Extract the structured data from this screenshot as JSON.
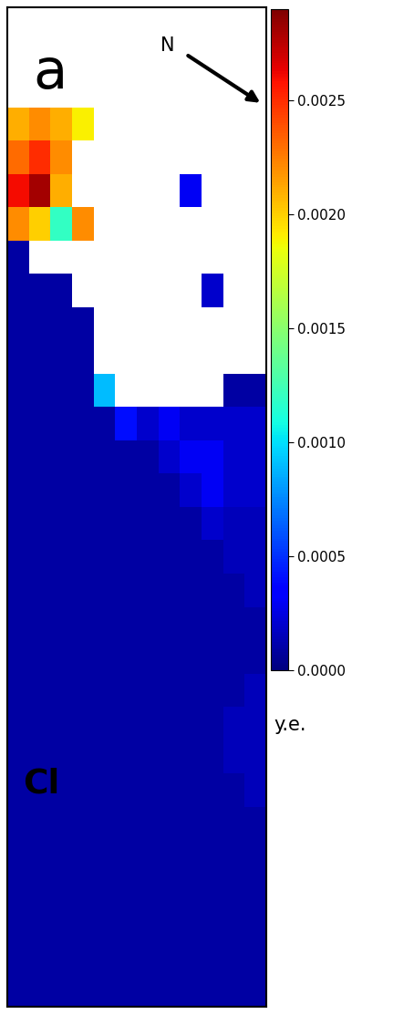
{
  "chart_data": {
    "type": "heatmap",
    "tick_labels": false,
    "annotations": [
      "a",
      "N",
      "Cl"
    ],
    "colorbar": {
      "label": "y.e.",
      "range": [
        0,
        0.0029
      ],
      "ticks": [
        {
          "value": 0,
          "label": "0.0000"
        },
        {
          "value": 0.0005,
          "label": "0.0005"
        },
        {
          "value": 0.001,
          "label": "0.0010"
        },
        {
          "value": 0.0015,
          "label": "0.0015"
        },
        {
          "value": 0.002,
          "label": "0.0020"
        },
        {
          "value": 0.0025,
          "label": "0.0025"
        }
      ]
    },
    "cells": [
      [
        null,
        null,
        null,
        null,
        null,
        null,
        null,
        null,
        null,
        null,
        null,
        null
      ],
      [
        null,
        null,
        null,
        null,
        null,
        null,
        null,
        null,
        null,
        null,
        null,
        null
      ],
      [
        null,
        null,
        null,
        null,
        null,
        null,
        null,
        null,
        null,
        null,
        null,
        null
      ],
      [
        0.0021,
        0.0022,
        0.0021,
        0.0019,
        null,
        null,
        null,
        null,
        null,
        null,
        null,
        null
      ],
      [
        0.0023,
        0.0025,
        0.0022,
        null,
        null,
        null,
        null,
        null,
        null,
        null,
        null,
        null
      ],
      [
        0.0026,
        0.0028,
        0.0021,
        null,
        null,
        null,
        null,
        null,
        0.0003,
        null,
        null,
        null
      ],
      [
        0.0022,
        0.002,
        0.0012,
        0.0022,
        null,
        null,
        null,
        null,
        null,
        null,
        null,
        null
      ],
      [
        0.0001,
        null,
        null,
        null,
        null,
        null,
        null,
        null,
        null,
        null,
        null,
        null
      ],
      [
        0.0001,
        0.0001,
        0.0001,
        null,
        null,
        null,
        null,
        null,
        null,
        0.0002,
        null,
        null
      ],
      [
        0.0001,
        0.0001,
        0.0001,
        0.0001,
        null,
        null,
        null,
        null,
        null,
        null,
        null,
        null
      ],
      [
        0.0001,
        0.0001,
        0.0001,
        0.0001,
        null,
        null,
        null,
        null,
        null,
        null,
        null,
        null
      ],
      [
        0.0001,
        0.0001,
        0.0001,
        0.0001,
        0.0009,
        null,
        null,
        null,
        null,
        null,
        0.0001,
        0.0001
      ],
      [
        0.0001,
        0.0001,
        0.0001,
        0.0001,
        0.0001,
        0.0004,
        0.0002,
        0.0003,
        0.0002,
        0.0002,
        0.0002,
        0.0002
      ],
      [
        0.0001,
        0.0001,
        0.0001,
        0.0001,
        0.0001,
        0.0001,
        0.0001,
        0.0002,
        0.0003,
        0.0003,
        0.0002,
        0.0002
      ],
      [
        0.0001,
        0.0001,
        0.0001,
        0.0001,
        0.0001,
        0.0001,
        0.0001,
        0.0001,
        0.0002,
        0.0003,
        0.0002,
        0.0002
      ],
      [
        0.0001,
        0.0001,
        0.0001,
        0.0001,
        0.0001,
        0.0001,
        0.0001,
        0.0001,
        0.0001,
        0.0002,
        0.00015,
        0.00015
      ],
      [
        0.0001,
        0.0001,
        0.0001,
        0.0001,
        0.0001,
        0.0001,
        0.0001,
        0.0001,
        0.0001,
        0.0001,
        0.00015,
        0.00015
      ],
      [
        0.0001,
        0.0001,
        0.0001,
        0.0001,
        0.0001,
        0.0001,
        0.0001,
        0.0001,
        0.0001,
        0.0001,
        0.0001,
        0.00015
      ],
      [
        0.0001,
        0.0001,
        0.0001,
        0.0001,
        0.0001,
        0.0001,
        0.0001,
        0.0001,
        0.0001,
        0.0001,
        0.0001,
        0.0001
      ],
      [
        0.0001,
        0.0001,
        0.0001,
        0.0001,
        0.0001,
        0.0001,
        0.0001,
        0.0001,
        0.0001,
        0.0001,
        0.0001,
        0.0001
      ],
      [
        0.0001,
        0.0001,
        0.0001,
        0.0001,
        0.0001,
        0.0001,
        0.0001,
        0.0001,
        0.0001,
        0.0001,
        0.0001,
        0.00015
      ],
      [
        0.0001,
        0.0001,
        0.0001,
        0.0001,
        0.0001,
        0.0001,
        0.0001,
        0.0001,
        0.0001,
        0.0001,
        0.00015,
        0.00015
      ],
      [
        0.0001,
        0.0001,
        0.0001,
        0.0001,
        0.0001,
        0.0001,
        0.0001,
        0.0001,
        0.0001,
        0.0001,
        0.00015,
        0.00015
      ],
      [
        0.0001,
        0.0001,
        0.0001,
        0.0001,
        0.0001,
        0.0001,
        0.0001,
        0.0001,
        0.0001,
        0.0001,
        0.0001,
        0.00015
      ],
      [
        0.0001,
        0.0001,
        0.0001,
        0.0001,
        0.0001,
        0.0001,
        0.0001,
        0.0001,
        0.0001,
        0.0001,
        0.0001,
        0.0001
      ],
      [
        0.0001,
        0.0001,
        0.0001,
        0.0001,
        0.0001,
        0.0001,
        0.0001,
        0.0001,
        0.0001,
        0.0001,
        0.0001,
        0.0001
      ],
      [
        0.0001,
        0.0001,
        0.0001,
        0.0001,
        0.0001,
        0.0001,
        0.0001,
        0.0001,
        0.0001,
        0.0001,
        0.0001,
        0.0001
      ],
      [
        0.0001,
        0.0001,
        0.0001,
        0.0001,
        0.0001,
        0.0001,
        0.0001,
        0.0001,
        0.0001,
        0.0001,
        0.0001,
        0.0001
      ],
      [
        0.0001,
        0.0001,
        0.0001,
        0.0001,
        0.0001,
        0.0001,
        0.0001,
        0.0001,
        0.0001,
        0.0001,
        0.0001,
        0.0001
      ],
      [
        0.0001,
        0.0001,
        0.0001,
        0.0001,
        0.0001,
        0.0001,
        0.0001,
        0.0001,
        0.0001,
        0.0001,
        0.0001,
        0.0001
      ]
    ]
  }
}
